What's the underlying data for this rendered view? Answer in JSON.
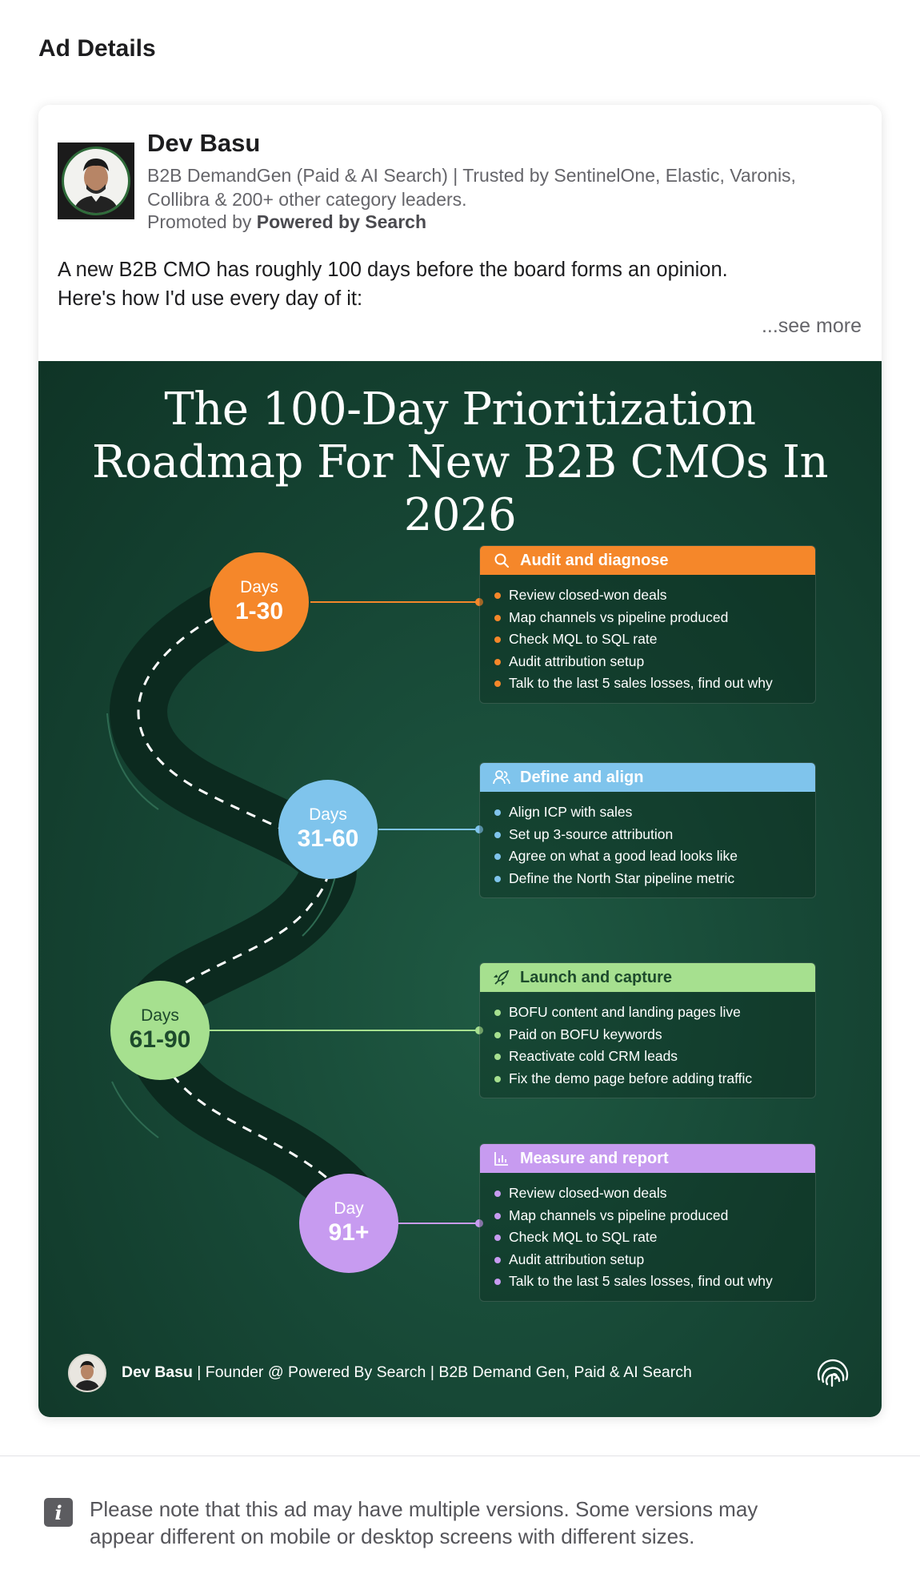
{
  "page": {
    "title": "Ad Details"
  },
  "ad": {
    "advertiser_name": "Dev Basu",
    "headline_line1": "B2B DemandGen (Paid & AI Search) | Trusted by SentinelOne, Elastic, Varonis,",
    "headline_line2": "Collibra & 200+ other category leaders.",
    "promoted_prefix": "Promoted by",
    "promoted_by": "Powered by Search",
    "body_line1": "A new B2B CMO has roughly 100 days before the board forms an opinion.",
    "body_line2": "Here's how I'd use every day of it:",
    "see_more": "...see more"
  },
  "creative": {
    "title_line1": "The 100-Day Prioritization",
    "title_line2": "Roadmap For New B2B CMOs In 2026",
    "phases": [
      {
        "label": "Days",
        "range": "1-30",
        "color": "#f5872a",
        "text_color": "#ffffff",
        "title": "Audit and diagnose",
        "icon": "search-icon",
        "items": [
          "Review closed-won deals",
          "Map channels vs pipeline produced",
          "Check MQL to SQL rate",
          "Audit attribution setup",
          "Talk to the last 5 sales losses, find out why"
        ]
      },
      {
        "label": "Days",
        "range": "31-60",
        "color": "#7fc4ec",
        "text_color": "#ffffff",
        "title": "Define and align",
        "icon": "users-icon",
        "items": [
          "Align ICP with sales",
          "Set up 3-source attribution",
          "Agree on what a good lead looks like",
          "Define the North Star pipeline metric"
        ]
      },
      {
        "label": "Days",
        "range": "61-90",
        "color": "#a6e08f",
        "text_color": "#1d4a2c",
        "title": "Launch and capture",
        "icon": "rocket-icon",
        "items": [
          "BOFU content and landing pages live",
          "Paid on BOFU keywords",
          "Reactivate cold CRM leads",
          "Fix the demo page before adding traffic"
        ]
      },
      {
        "label": "Day",
        "range": "91+",
        "color": "#c79bf0",
        "text_color": "#ffffff",
        "title": "Measure and report",
        "icon": "bar-chart-icon",
        "items": [
          "Review closed-won deals",
          "Map channels vs pipeline produced",
          "Check MQL to SQL rate",
          "Audit attribution setup",
          "Talk to the last 5 sales losses, find out why"
        ]
      }
    ],
    "footer": {
      "name": "Dev Basu",
      "sep": "|",
      "role": "Founder @ Powered By Search",
      "tagline": "B2B Demand Gen, Paid & AI Search"
    }
  },
  "notice": {
    "icon": "info-icon",
    "icon_glyph": "i",
    "text_line1": "Please note that this ad may have multiple versions. Some versions may",
    "text_line2": "appear different on mobile or desktop screens with different sizes."
  }
}
